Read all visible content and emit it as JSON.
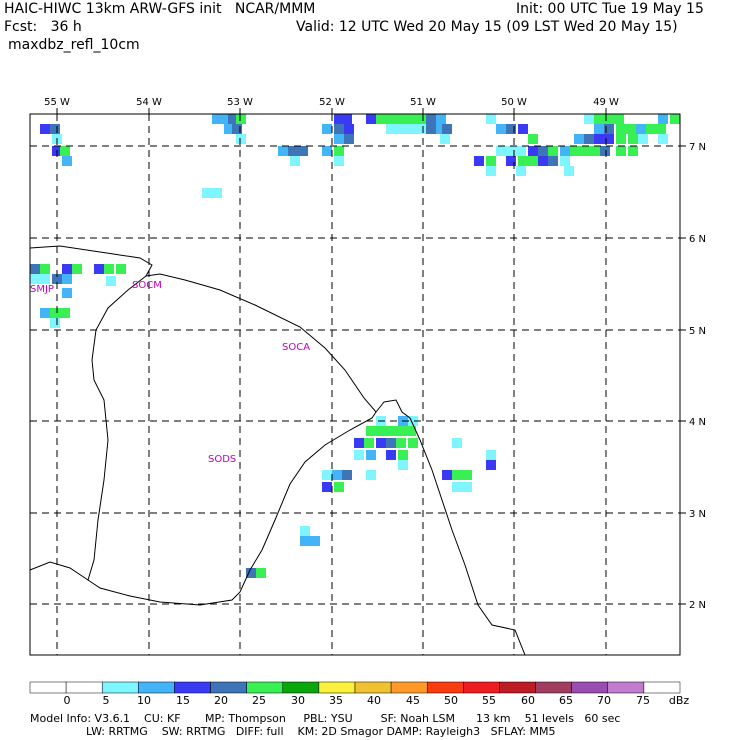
{
  "header": {
    "left_line1": "HAIC-HIWC 13km ARW-GFS init   NCAR/MMM",
    "left_line2": "Fcst:   36 h",
    "left_line3": "maxdbz_refl_10cm",
    "right_line1": "Init: 00 UTC Tue 19 May 15",
    "right_line2": "Valid: 12 UTC Wed 20 May 15 (09 LST Wed 20 May 15)"
  },
  "map": {
    "lon_labels": [
      "55 W",
      "54 W",
      "53 W",
      "52 W",
      "51 W",
      "50 W",
      "49 W"
    ],
    "lat_labels": [
      "7 N",
      "6 N",
      "5 N",
      "4 N",
      "3 N",
      "2 N"
    ],
    "place_labels": [
      "SMJP",
      "SOCM",
      "SOCA",
      "SODS"
    ],
    "place_color": "#c000c0"
  },
  "colorbar": {
    "unit": "dBz",
    "ticks": [
      "0",
      "5",
      "10",
      "15",
      "20",
      "25",
      "30",
      "35",
      "40",
      "45",
      "50",
      "55",
      "60",
      "65",
      "70",
      "75"
    ],
    "colors": [
      "#ffffff",
      "#ffffff",
      "#7ff5ff",
      "#44b4f8",
      "#3a3af4",
      "#3d75b8",
      "#38f054",
      "#0aa60a",
      "#fcf03c",
      "#f0c232",
      "#ff9a2a",
      "#f83c10",
      "#f01c24",
      "#be1c24",
      "#a03c60",
      "#9a4cb0",
      "#c07cd0",
      "#ffffff"
    ]
  },
  "footer": {
    "line1": "Model Info: V3.6.1    CU: KF       MP: Thompson     PBL: YSU        SF: Noah LSM      13 km    51 levels   60 sec",
    "line2": "                LW: RRTMG    SW: RRTMG   DIFF: full    KM: 2D Smagor DAMP: Rayleigh3   SFLAY: MM5"
  }
}
